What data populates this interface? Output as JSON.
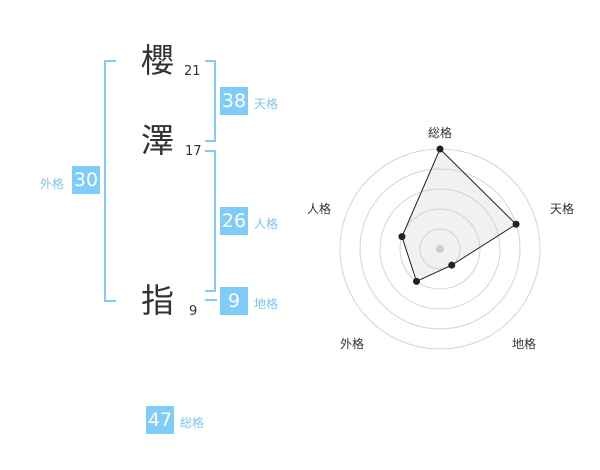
{
  "name": [
    {
      "char": "櫻",
      "strokes": "21"
    },
    {
      "char": "澤",
      "strokes": "17"
    },
    {
      "char": "指",
      "strokes": "9"
    }
  ],
  "fortunes": {
    "tenkaku": {
      "label": "天格",
      "value": "38"
    },
    "jinkaku": {
      "label": "人格",
      "value": "26"
    },
    "chikaku": {
      "label": "地格",
      "value": "9"
    },
    "gaikaku": {
      "label": "外格",
      "value": "30"
    },
    "soukaku": {
      "label": "総格",
      "value": "47"
    }
  },
  "colors": {
    "accent": "#80ccf8",
    "label": "#7fc4ee"
  },
  "chart_data": {
    "type": "radar",
    "axes": [
      "総格",
      "天格",
      "地格",
      "外格",
      "人格"
    ],
    "values": [
      5,
      4,
      1,
      2,
      2
    ],
    "range": [
      0,
      5
    ],
    "rings": 5
  }
}
